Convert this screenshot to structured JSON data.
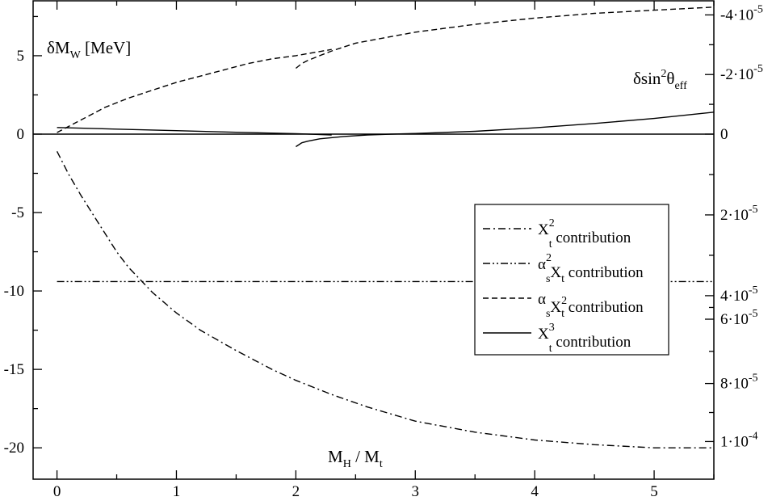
{
  "chart_data": {
    "type": "line",
    "xlabel": {
      "main": "M",
      "sub1": "H",
      "mid": " / M",
      "sub2": "t"
    },
    "ylabel_left": {
      "main": "δM",
      "sub": "W",
      "rest": " [MeV]"
    },
    "ylabel_right": {
      "main": "δsin",
      "sup": "2",
      "mid": "θ",
      "sub": "eff"
    },
    "xlim": [
      -0.2,
      5.5
    ],
    "ylim": [
      -22,
      8.5
    ],
    "x_ticks": [
      {
        "value": 0,
        "label": "0"
      },
      {
        "value": 1,
        "label": "1"
      },
      {
        "value": 2,
        "label": "2"
      },
      {
        "value": 3,
        "label": "3"
      },
      {
        "value": 4,
        "label": "4"
      },
      {
        "value": 5,
        "label": "5"
      }
    ],
    "y_ticks_left": [
      {
        "value": 5,
        "label": "5"
      },
      {
        "value": 0,
        "label": "0"
      },
      {
        "value": -5,
        "label": "-5"
      },
      {
        "value": -10,
        "label": "-10"
      },
      {
        "value": -15,
        "label": "-15"
      },
      {
        "value": -20,
        "label": "-20"
      }
    ],
    "y_ticks_right": [
      {
        "value": 7.6,
        "mantissa": "-4·10",
        "exp": "-5"
      },
      {
        "value": 3.8,
        "mantissa": "-2·10",
        "exp": "-5"
      },
      {
        "value": 0,
        "mantissa": "0",
        "exp": ""
      },
      {
        "value": -5.15,
        "mantissa": "2·10",
        "exp": "-5"
      },
      {
        "value": -10.3,
        "mantissa": "4·10",
        "exp": "-5"
      },
      {
        "value": -11.8,
        "mantissa": "6·10",
        "exp": "-5"
      },
      {
        "value": -15.9,
        "mantissa": "8·10",
        "exp": "-5"
      },
      {
        "value": -19.6,
        "mantissa": "1·10",
        "exp": "-4"
      }
    ],
    "series": [
      {
        "name": "Xt2",
        "style": "dashdot",
        "x": [
          0.0,
          0.1,
          0.2,
          0.3,
          0.4,
          0.5,
          0.6,
          0.7,
          0.8,
          1.0,
          1.2,
          1.5,
          1.8,
          2.0,
          2.3,
          2.6,
          3.0,
          3.5,
          4.0,
          4.5,
          5.0,
          5.5
        ],
        "y": [
          -1.1,
          -2.6,
          -3.9,
          -5.1,
          -6.3,
          -7.5,
          -8.5,
          -9.3,
          -10.1,
          -11.4,
          -12.5,
          -13.8,
          -15.0,
          -15.7,
          -16.6,
          -17.4,
          -18.3,
          -19.0,
          -19.5,
          -19.8,
          -20.0,
          -20.0
        ]
      },
      {
        "name": "as2Xt",
        "style": "dashdotdot",
        "x": [
          0.0,
          5.5
        ],
        "y": [
          -9.4,
          -9.4
        ]
      },
      {
        "name": "asXt2_a",
        "style": "dashed",
        "x": [
          0.0,
          0.2,
          0.4,
          0.6,
          0.8,
          1.0,
          1.2,
          1.4,
          1.6,
          1.8,
          2.0,
          2.3
        ],
        "y": [
          0.1,
          0.9,
          1.7,
          2.3,
          2.8,
          3.3,
          3.7,
          4.1,
          4.5,
          4.8,
          5.0,
          5.4
        ]
      },
      {
        "name": "asXt2_b",
        "style": "dashed",
        "x": [
          2.0,
          2.05,
          2.1,
          2.2,
          2.3,
          2.5,
          3.0,
          3.5,
          4.0,
          4.5,
          5.0,
          5.5
        ],
        "y": [
          4.2,
          4.5,
          4.7,
          5.0,
          5.3,
          5.8,
          6.5,
          7.0,
          7.4,
          7.7,
          7.9,
          8.1
        ]
      },
      {
        "name": "Xt3_a",
        "style": "solid",
        "x": [
          0.0,
          0.5,
          1.0,
          1.5,
          2.0,
          2.3
        ],
        "y": [
          0.42,
          0.32,
          0.22,
          0.12,
          0.03,
          -0.05
        ]
      },
      {
        "name": "Xt3_b",
        "style": "solid",
        "x": [
          2.0,
          2.05,
          2.1,
          2.2,
          2.4,
          2.6,
          2.8,
          3.0,
          3.5,
          4.0,
          4.5,
          5.0,
          5.5
        ],
        "y": [
          -0.8,
          -0.55,
          -0.45,
          -0.3,
          -0.15,
          -0.05,
          0.0,
          0.04,
          0.18,
          0.4,
          0.68,
          1.0,
          1.4
        ]
      },
      {
        "name": "zero-line",
        "style": "solid",
        "x": [
          -0.2,
          5.5
        ],
        "y": [
          0,
          0
        ]
      }
    ],
    "legend": {
      "position": "right",
      "entries": [
        {
          "style": "dashdot",
          "a": "X",
          "a_sup": "2",
          "a_sub": "t",
          "b": "",
          "b_sub": "",
          "b_sup": "",
          "text": "contribution"
        },
        {
          "style": "dashdotdot",
          "a": "α",
          "a_sup": "2",
          "a_sub": "s",
          "b": "X",
          "b_sub": "t",
          "b_sup": "",
          "text": "contribution"
        },
        {
          "style": "dashed",
          "a": "α",
          "a_sup": "",
          "a_sub": "s",
          "b": "X",
          "b_sub": "t",
          "b_sup": "2",
          "text": "contribution"
        },
        {
          "style": "solid",
          "a": "X",
          "a_sup": "3",
          "a_sub": "t",
          "b": "",
          "b_sub": "",
          "b_sup": "",
          "text": "contribution"
        }
      ]
    }
  }
}
